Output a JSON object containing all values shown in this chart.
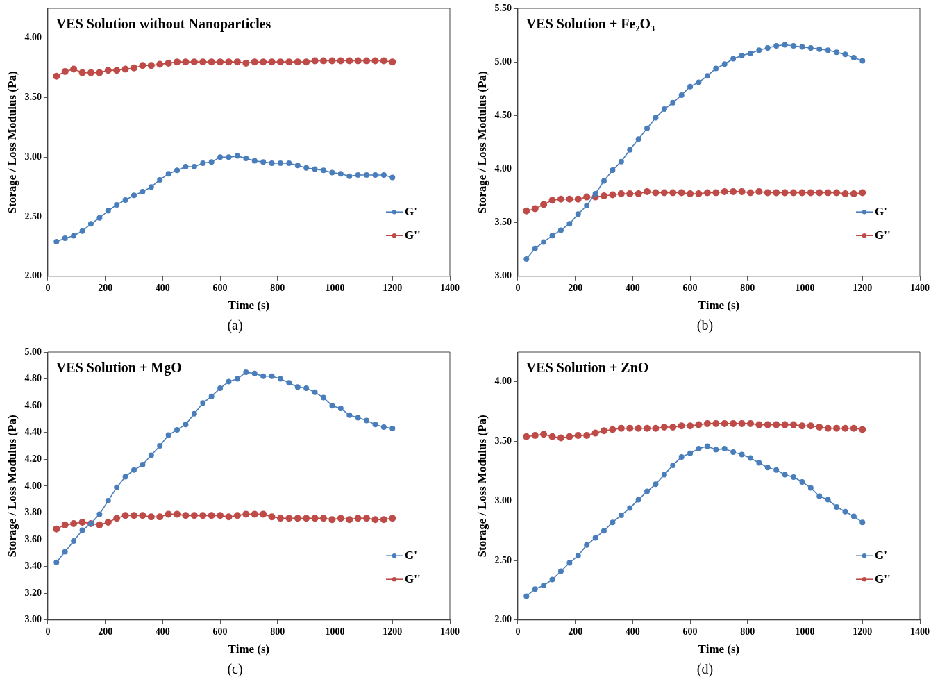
{
  "chart_data": [
    {
      "type": "line",
      "title": "VES Solution without Nanoparticles",
      "xlabel": "Time (s)",
      "ylabel": "Storage / Loss Modulus (Pa)",
      "annotations": [
        "(a)"
      ],
      "x": [
        30,
        60,
        90,
        120,
        150,
        180,
        210,
        240,
        270,
        300,
        330,
        360,
        390,
        420,
        450,
        480,
        510,
        540,
        570,
        600,
        630,
        660,
        690,
        720,
        750,
        780,
        810,
        840,
        870,
        900,
        930,
        960,
        990,
        1020,
        1050,
        1080,
        1110,
        1140,
        1170,
        1200
      ],
      "series": [
        {
          "name": "G'",
          "color": "#4a7ebb",
          "values": [
            2.29,
            2.32,
            2.34,
            2.38,
            2.44,
            2.49,
            2.55,
            2.6,
            2.64,
            2.68,
            2.71,
            2.75,
            2.81,
            2.86,
            2.89,
            2.92,
            2.92,
            2.95,
            2.96,
            3.0,
            3.0,
            3.01,
            2.99,
            2.97,
            2.96,
            2.95,
            2.95,
            2.95,
            2.93,
            2.91,
            2.9,
            2.89,
            2.87,
            2.86,
            2.84,
            2.85,
            2.85,
            2.85,
            2.85,
            2.83
          ]
        },
        {
          "name": "G''",
          "color": "#be4b48",
          "values": [
            3.68,
            3.72,
            3.74,
            3.71,
            3.71,
            3.71,
            3.73,
            3.73,
            3.74,
            3.75,
            3.77,
            3.77,
            3.78,
            3.79,
            3.8,
            3.8,
            3.8,
            3.8,
            3.8,
            3.8,
            3.8,
            3.8,
            3.79,
            3.8,
            3.8,
            3.8,
            3.8,
            3.8,
            3.8,
            3.8,
            3.81,
            3.81,
            3.81,
            3.81,
            3.81,
            3.81,
            3.81,
            3.81,
            3.81,
            3.8
          ]
        }
      ],
      "xlim": [
        0,
        1400
      ],
      "xticks": [
        0,
        200,
        400,
        600,
        800,
        1000,
        1200,
        1400
      ],
      "ylim": [
        2,
        4.25
      ],
      "yticks": [
        {
          "value": 2,
          "label": "2.00"
        },
        {
          "value": 2.5,
          "label": "2.50"
        },
        {
          "value": 3,
          "label": "3.00"
        },
        {
          "value": 3.5,
          "label": "3.50"
        },
        {
          "value": 4,
          "label": "4.00"
        }
      ],
      "grid": false,
      "legend": "right",
      "marker": "circle",
      "line_style": "solid"
    },
    {
      "type": "line",
      "title": "VES Solution + Fe₂O₃",
      "xlabel": "Time (s)",
      "ylabel": "Storage / Loss Modulus (Pa)",
      "annotations": [
        "(b)"
      ],
      "x": [
        30,
        60,
        90,
        120,
        150,
        180,
        210,
        240,
        270,
        300,
        330,
        360,
        390,
        420,
        450,
        480,
        510,
        540,
        570,
        600,
        630,
        660,
        690,
        720,
        750,
        780,
        810,
        840,
        870,
        900,
        930,
        960,
        990,
        1020,
        1050,
        1080,
        1110,
        1140,
        1170,
        1200
      ],
      "series": [
        {
          "name": "G'",
          "color": "#4a7ebb",
          "values": [
            3.16,
            3.26,
            3.32,
            3.38,
            3.43,
            3.49,
            3.58,
            3.66,
            3.77,
            3.89,
            3.99,
            4.07,
            4.18,
            4.28,
            4.38,
            4.48,
            4.56,
            4.62,
            4.69,
            4.77,
            4.81,
            4.87,
            4.94,
            4.98,
            5.03,
            5.06,
            5.08,
            5.11,
            5.13,
            5.15,
            5.16,
            5.15,
            5.14,
            5.13,
            5.12,
            5.11,
            5.09,
            5.07,
            5.04,
            5.01
          ]
        },
        {
          "name": "G''",
          "color": "#be4b48",
          "values": [
            3.61,
            3.63,
            3.67,
            3.71,
            3.72,
            3.72,
            3.72,
            3.74,
            3.74,
            3.75,
            3.76,
            3.77,
            3.77,
            3.77,
            3.79,
            3.78,
            3.78,
            3.78,
            3.78,
            3.77,
            3.77,
            3.78,
            3.78,
            3.79,
            3.79,
            3.79,
            3.78,
            3.79,
            3.78,
            3.78,
            3.78,
            3.78,
            3.78,
            3.78,
            3.78,
            3.78,
            3.78,
            3.77,
            3.77,
            3.78
          ]
        }
      ],
      "xlim": [
        0,
        1400
      ],
      "xticks": [
        0,
        200,
        400,
        600,
        800,
        1000,
        1200,
        1400
      ],
      "ylim": [
        3,
        5.5
      ],
      "yticks": [
        {
          "value": 3,
          "label": "3.00"
        },
        {
          "value": 3.5,
          "label": "3.50"
        },
        {
          "value": 4,
          "label": "4.00"
        },
        {
          "value": 4.5,
          "label": "4.50"
        },
        {
          "value": 5,
          "label": "5.00"
        },
        {
          "value": 5.5,
          "label": "5.50"
        }
      ],
      "grid": false,
      "legend": "right",
      "marker": "circle",
      "line_style": "solid"
    },
    {
      "type": "line",
      "title": "VES Solution + MgO",
      "xlabel": "Time (s)",
      "ylabel": "Storage / Loss Modulus (Pa)",
      "annotations": [
        "(c)"
      ],
      "x": [
        30,
        60,
        90,
        120,
        150,
        180,
        210,
        240,
        270,
        300,
        330,
        360,
        390,
        420,
        450,
        480,
        510,
        540,
        570,
        600,
        630,
        660,
        690,
        720,
        750,
        780,
        810,
        840,
        870,
        900,
        930,
        960,
        990,
        1020,
        1050,
        1080,
        1110,
        1140,
        1170,
        1200
      ],
      "series": [
        {
          "name": "G'",
          "color": "#4a7ebb",
          "values": [
            3.43,
            3.51,
            3.59,
            3.67,
            3.72,
            3.79,
            3.89,
            3.99,
            4.07,
            4.12,
            4.16,
            4.23,
            4.3,
            4.38,
            4.42,
            4.46,
            4.54,
            4.62,
            4.67,
            4.73,
            4.78,
            4.8,
            4.85,
            4.84,
            4.82,
            4.82,
            4.8,
            4.77,
            4.74,
            4.73,
            4.7,
            4.66,
            4.6,
            4.58,
            4.53,
            4.51,
            4.49,
            4.46,
            4.44,
            4.43
          ]
        },
        {
          "name": "G''",
          "color": "#be4b48",
          "values": [
            3.68,
            3.71,
            3.72,
            3.73,
            3.72,
            3.71,
            3.73,
            3.76,
            3.78,
            3.78,
            3.78,
            3.77,
            3.77,
            3.79,
            3.79,
            3.78,
            3.78,
            3.78,
            3.78,
            3.78,
            3.77,
            3.78,
            3.79,
            3.79,
            3.79,
            3.77,
            3.76,
            3.76,
            3.76,
            3.76,
            3.76,
            3.76,
            3.75,
            3.76,
            3.75,
            3.76,
            3.76,
            3.75,
            3.75,
            3.76
          ]
        }
      ],
      "xlim": [
        0,
        1400
      ],
      "xticks": [
        0,
        200,
        400,
        600,
        800,
        1000,
        1200,
        1400
      ],
      "ylim": [
        3,
        5
      ],
      "yticks": [
        {
          "value": 3,
          "label": "3.00"
        },
        {
          "value": 3.2,
          "label": "3.20"
        },
        {
          "value": 3.4,
          "label": "3.40"
        },
        {
          "value": 3.6,
          "label": "3.60"
        },
        {
          "value": 3.8,
          "label": "3.80"
        },
        {
          "value": 4,
          "label": "4.00"
        },
        {
          "value": 4.2,
          "label": "4.20"
        },
        {
          "value": 4.4,
          "label": "4.40"
        },
        {
          "value": 4.6,
          "label": "4.60"
        },
        {
          "value": 4.8,
          "label": "4.80"
        },
        {
          "value": 5,
          "label": "5.00"
        }
      ],
      "grid": false,
      "legend": "right",
      "marker": "circle",
      "line_style": "solid"
    },
    {
      "type": "line",
      "title": "VES Solution + ZnO",
      "xlabel": "Time (s)",
      "ylabel": "Storage / Loss Modulus (Pa)",
      "annotations": [
        "(d)"
      ],
      "x": [
        30,
        60,
        90,
        120,
        150,
        180,
        210,
        240,
        270,
        300,
        330,
        360,
        390,
        420,
        450,
        480,
        510,
        540,
        570,
        600,
        630,
        660,
        690,
        720,
        750,
        780,
        810,
        840,
        870,
        900,
        930,
        960,
        990,
        1020,
        1050,
        1080,
        1110,
        1140,
        1170,
        1200
      ],
      "series": [
        {
          "name": "G'",
          "color": "#4a7ebb",
          "values": [
            2.2,
            2.26,
            2.29,
            2.34,
            2.41,
            2.48,
            2.54,
            2.63,
            2.69,
            2.75,
            2.82,
            2.88,
            2.94,
            3.01,
            3.08,
            3.14,
            3.22,
            3.3,
            3.37,
            3.4,
            3.44,
            3.46,
            3.43,
            3.44,
            3.41,
            3.39,
            3.36,
            3.32,
            3.28,
            3.26,
            3.22,
            3.2,
            3.16,
            3.11,
            3.04,
            3.01,
            2.95,
            2.91,
            2.87,
            2.82
          ]
        },
        {
          "name": "G''",
          "color": "#be4b48",
          "values": [
            3.54,
            3.55,
            3.56,
            3.54,
            3.53,
            3.54,
            3.55,
            3.55,
            3.57,
            3.59,
            3.6,
            3.61,
            3.61,
            3.61,
            3.61,
            3.61,
            3.62,
            3.62,
            3.63,
            3.63,
            3.64,
            3.65,
            3.65,
            3.65,
            3.65,
            3.65,
            3.65,
            3.64,
            3.64,
            3.64,
            3.64,
            3.64,
            3.63,
            3.63,
            3.62,
            3.61,
            3.61,
            3.61,
            3.61,
            3.6
          ]
        }
      ],
      "xlim": [
        0,
        1400
      ],
      "xticks": [
        0,
        200,
        400,
        600,
        800,
        1000,
        1200,
        1400
      ],
      "ylim": [
        2,
        4.25
      ],
      "yticks": [
        {
          "value": 2,
          "label": "2.00"
        },
        {
          "value": 2.5,
          "label": "2.50"
        },
        {
          "value": 3,
          "label": "3.00"
        },
        {
          "value": 3.5,
          "label": "3.50"
        },
        {
          "value": 4,
          "label": "4.00"
        }
      ],
      "grid": false,
      "legend": "right",
      "marker": "circle",
      "line_style": "solid"
    }
  ]
}
